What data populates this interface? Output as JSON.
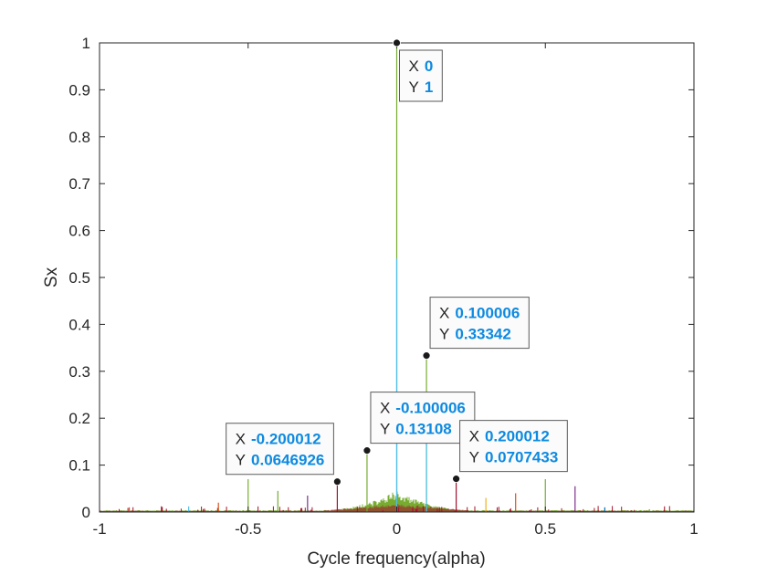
{
  "chart_data": {
    "type": "line",
    "title": "",
    "xlabel": "Cycle frequency(alpha)",
    "ylabel": "Sx",
    "xlim": [
      -1,
      1
    ],
    "ylim": [
      0,
      1
    ],
    "x_ticks": [
      "-1",
      "-0.5",
      "0",
      "0.5",
      "1"
    ],
    "y_ticks": [
      "0",
      "0.1",
      "0.2",
      "0.3",
      "0.4",
      "0.5",
      "0.6",
      "0.7",
      "0.8",
      "0.9",
      "1"
    ],
    "grid": false,
    "spikes": [
      {
        "x": 0.0,
        "y": 1.0,
        "color": "#77ac30"
      },
      {
        "x": 0.0,
        "y": 0.54,
        "color": "#4dbeee"
      },
      {
        "x": 0.100006,
        "y": 0.33342,
        "color": "#77ac30"
      },
      {
        "x": 0.100006,
        "y": 0.24,
        "color": "#4dbeee"
      },
      {
        "x": -0.100006,
        "y": 0.13108,
        "color": "#77ac30"
      },
      {
        "x": -0.200012,
        "y": 0.0646926,
        "color": "#a2142f"
      },
      {
        "x": 0.200012,
        "y": 0.0707433,
        "color": "#a2142f"
      },
      {
        "x": -0.5,
        "y": 0.07,
        "color": "#77ac30"
      },
      {
        "x": 0.5,
        "y": 0.07,
        "color": "#77ac30"
      },
      {
        "x": 0.6,
        "y": 0.055,
        "color": "#7e2f8e"
      },
      {
        "x": -0.4,
        "y": 0.045,
        "color": "#77ac30"
      },
      {
        "x": 0.4,
        "y": 0.04,
        "color": "#d95319"
      },
      {
        "x": -0.3,
        "y": 0.035,
        "color": "#7e2f8e"
      },
      {
        "x": 0.3,
        "y": 0.03,
        "color": "#edb120"
      },
      {
        "x": -0.6,
        "y": 0.02,
        "color": "#d95319"
      },
      {
        "x": -0.7,
        "y": 0.012,
        "color": "#4dbeee"
      },
      {
        "x": 0.7,
        "y": 0.01,
        "color": "#0072bd"
      },
      {
        "x": -0.9,
        "y": 0.01,
        "color": "#d95319"
      },
      {
        "x": 0.85,
        "y": 0.006,
        "color": "#77ac30"
      }
    ],
    "datatips": [
      {
        "x_label": "X",
        "x_value": "0",
        "y_label": "Y",
        "y_value": "1",
        "x": 0.0,
        "y": 1.0,
        "placement": "right-below"
      },
      {
        "x_label": "X",
        "x_value": "0.100006",
        "y_label": "Y",
        "y_value": "0.33342",
        "x": 0.100006,
        "y": 0.33342,
        "placement": "right-above"
      },
      {
        "x_label": "X",
        "x_value": "-0.100006",
        "y_label": "Y",
        "y_value": "0.13108",
        "x": -0.100006,
        "y": 0.13108,
        "placement": "right-above"
      },
      {
        "x_label": "X",
        "x_value": "-0.200012",
        "y_label": "Y",
        "y_value": "0.0646926",
        "x": -0.200012,
        "y": 0.0646926,
        "placement": "left-above"
      },
      {
        "x_label": "X",
        "x_value": "0.200012",
        "y_label": "Y",
        "y_value": "0.0707433",
        "x": 0.200012,
        "y": 0.0707433,
        "placement": "right-above"
      }
    ]
  }
}
